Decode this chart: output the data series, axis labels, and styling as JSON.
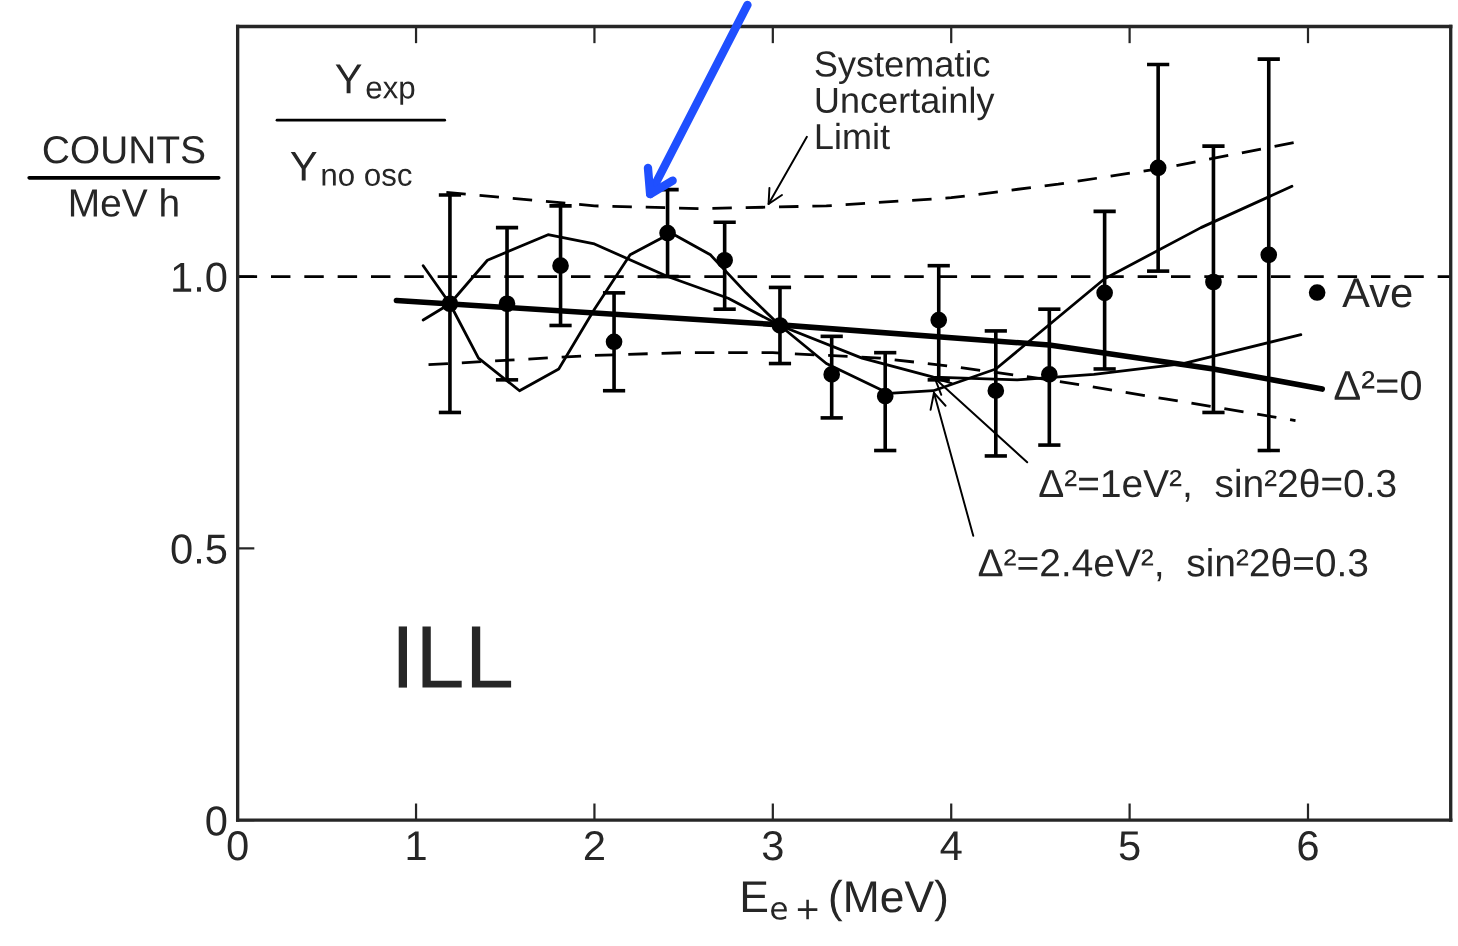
{
  "chart_data": {
    "type": "line",
    "xlabel": "E$_{e+}$(MeV)",
    "ylabel": "COUNTS\nMeV h",
    "xlim": [
      0,
      6.8
    ],
    "ylim": [
      0,
      1.46
    ],
    "xticks": [
      0,
      1,
      2,
      3,
      4,
      5,
      6
    ],
    "yticks": [
      0,
      {
        "value": 0.5,
        "label": "0.5"
      },
      {
        "value": 1,
        "label": "1.0"
      }
    ],
    "grid": false,
    "legend": "right",
    "series": [
      {
        "name": "Ave",
        "type": "scatter",
        "marker": "circle",
        "color": "#000000",
        "x": [
          1.19,
          1.51,
          1.81,
          2.11,
          2.41,
          2.73,
          3.04,
          3.33,
          3.63,
          3.93,
          4.25,
          4.55,
          4.86,
          5.16,
          5.47,
          5.78
        ],
        "values": [
          0.95,
          0.95,
          1.02,
          0.88,
          1.08,
          1.03,
          0.91,
          0.82,
          0.78,
          0.92,
          0.79,
          0.82,
          0.97,
          1.2,
          0.99,
          1.04
        ],
        "errors": [
          [
            0.75,
            1.15
          ],
          [
            0.81,
            1.09
          ],
          [
            0.91,
            1.13
          ],
          [
            0.79,
            0.97
          ],
          [
            1.0,
            1.16
          ],
          [
            0.94,
            1.1
          ],
          [
            0.84,
            0.98
          ],
          [
            0.74,
            0.89
          ],
          [
            0.68,
            0.86
          ],
          [
            0.81,
            1.02
          ],
          [
            0.67,
            0.9
          ],
          [
            0.69,
            0.94
          ],
          [
            0.83,
            1.12
          ],
          [
            1.01,
            1.39
          ],
          [
            0.75,
            1.24
          ],
          [
            0.68,
            1.4
          ]
        ]
      },
      {
        "name": "Δ²=0",
        "type": "line",
        "color": "#000000",
        "x": [
          0.89,
          3.0,
          4.55,
          5.47,
          6.08
        ],
        "values": [
          0.956,
          0.912,
          0.874,
          0.83,
          0.793
        ]
      },
      {
        "name": "Δ²=1eV²,  sin²2θ=0.3",
        "type": "line",
        "color": "#000000",
        "x": [
          1.04,
          1.19,
          1.4,
          1.74,
          2.0,
          2.41,
          2.75,
          3.04,
          3.5,
          3.9,
          4.37,
          4.8,
          5.3,
          5.96
        ],
        "values": [
          0.92,
          0.95,
          1.03,
          1.077,
          1.06,
          1.0,
          0.96,
          0.91,
          0.85,
          0.815,
          0.81,
          0.82,
          0.84,
          0.893
        ]
      },
      {
        "name": "Δ²=2.4eV²,  sin²2θ=0.3",
        "type": "line",
        "color": "#000000",
        "x": [
          1.04,
          1.19,
          1.35,
          1.58,
          1.8,
          2.0,
          2.2,
          2.43,
          2.65,
          2.85,
          3.04,
          3.3,
          3.65,
          3.9,
          4.25,
          4.86,
          5.4,
          5.91
        ],
        "values": [
          1.02,
          0.95,
          0.85,
          0.79,
          0.83,
          0.94,
          1.04,
          1.08,
          1.04,
          0.97,
          0.91,
          0.84,
          0.785,
          0.79,
          0.83,
          0.996,
          1.09,
          1.166
        ]
      },
      {
        "type": "line",
        "line_style": "dashed",
        "color": "#000000",
        "x": [
          1.17,
          2.0,
          2.6,
          3.3,
          4.0,
          4.6,
          5.2,
          5.93
        ],
        "values": [
          1.155,
          1.13,
          1.125,
          1.13,
          1.145,
          1.17,
          1.2,
          1.247
        ]
      },
      {
        "type": "line",
        "line_style": "dashed",
        "color": "#000000",
        "x": [
          1.07,
          2.0,
          2.5,
          3.0,
          3.6,
          4.0,
          4.55,
          5.2,
          5.93
        ],
        "values": [
          0.838,
          0.855,
          0.86,
          0.86,
          0.85,
          0.835,
          0.81,
          0.775,
          0.735
        ]
      }
    ],
    "ref_lines": [
      {
        "axis": "y",
        "value": 1.0,
        "line_style": "dashed",
        "color": "#000000"
      }
    ],
    "annotations": [
      "Y$_{exp}$",
      "Y$_{no osc}$",
      {
        "text": "Systematic\nUncertainly\nLimit",
        "x": 2.97,
        "y": 1.13
      },
      "ILL"
    ]
  }
}
